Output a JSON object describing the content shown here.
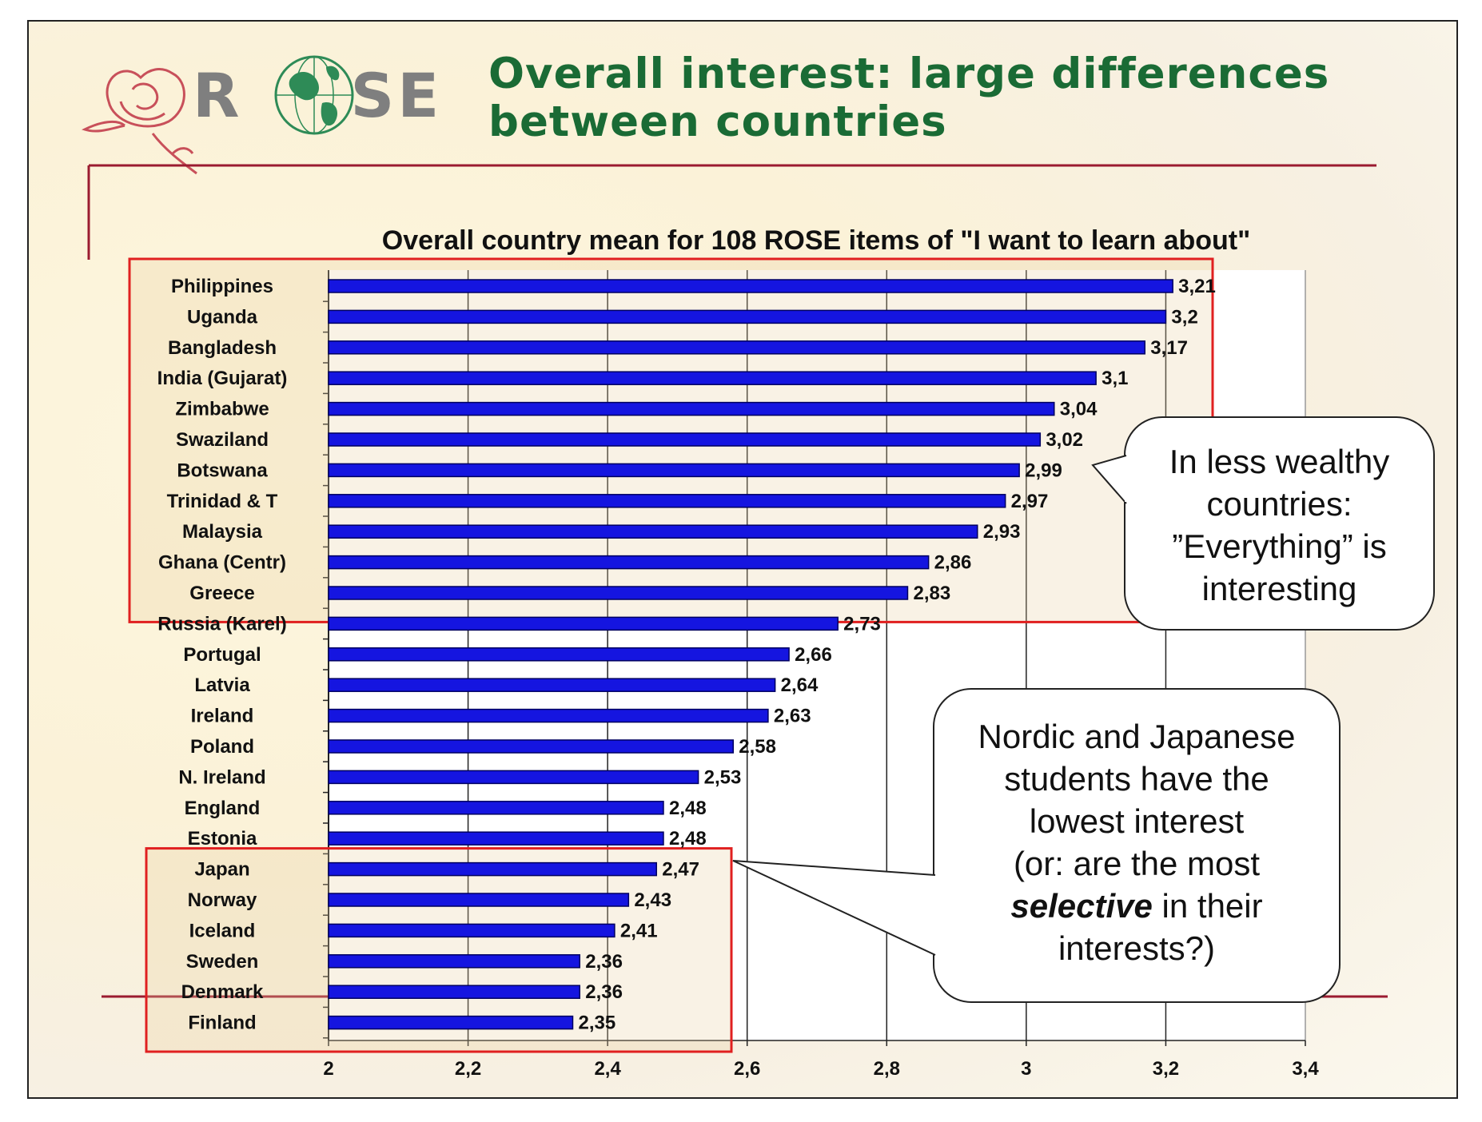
{
  "logo": {
    "text_r": "R",
    "text_se": "SE",
    "brand_color": "#7f7f7f",
    "rose_color": "#c8505a",
    "globe_color": "#2e8b57"
  },
  "slide_title": {
    "line1": "Overall interest: large differences",
    "line2": "between countries",
    "color": "#1a6b35"
  },
  "accent_color": "#9b1b30",
  "bubbles": {
    "wealthy": {
      "lines": [
        "In less wealthy",
        "countries:",
        "”Everything” is",
        "interesting"
      ]
    },
    "nordic": {
      "line1": "Nordic and Japanese",
      "line2": "students have the",
      "line3": "lowest interest",
      "line4": "(or: are the most",
      "line5_bold": "selective",
      "line5_rest": " in their",
      "line6": "interests?)"
    }
  },
  "chart_data": {
    "type": "bar",
    "orientation": "horizontal",
    "title": "Overall country mean for 108 ROSE items of \"I want to learn about\"",
    "xlabel": "",
    "ylabel": "",
    "xlim": [
      2,
      3.4
    ],
    "xticks": [
      "2",
      "2,2",
      "2,4",
      "2,6",
      "2,8",
      "3",
      "3,2",
      "3,4"
    ],
    "grid": true,
    "bar_color": "#1515e0",
    "categories": [
      "Philippines",
      "Uganda",
      "Bangladesh",
      "India (Gujarat)",
      "Zimbabwe",
      "Swaziland",
      "Botswana",
      "Trinidad & T",
      "Malaysia",
      "Ghana (Centr)",
      "Greece",
      "Russia (Karel)",
      "Portugal",
      "Latvia",
      "Ireland",
      "Poland",
      "N. Ireland",
      "England",
      "Estonia",
      "Japan",
      "Norway",
      "Iceland",
      "Sweden",
      "Denmark",
      "Finland"
    ],
    "values": [
      3.21,
      3.2,
      3.17,
      3.1,
      3.04,
      3.02,
      2.99,
      2.97,
      2.93,
      2.86,
      2.83,
      2.73,
      2.66,
      2.64,
      2.63,
      2.58,
      2.53,
      2.48,
      2.48,
      2.47,
      2.43,
      2.41,
      2.36,
      2.36,
      2.35
    ],
    "value_labels": [
      "3,21",
      "3,2",
      "3,17",
      "3,1",
      "3,04",
      "3,02",
      "2,99",
      "2,97",
      "2,93",
      "2,86",
      "2,83",
      "2,73",
      "2,66",
      "2,64",
      "2,63",
      "2,58",
      "2,53",
      "2,48",
      "2,48",
      "2,47",
      "2,43",
      "2,41",
      "2,36",
      "2,36",
      "2,35"
    ],
    "highlight_groups": [
      {
        "name": "less wealthy",
        "from": "Philippines",
        "to": "Greece",
        "color": "#e02020"
      },
      {
        "name": "nordic and japanese",
        "from": "Japan",
        "to": "Finland",
        "color": "#e02020"
      }
    ]
  }
}
